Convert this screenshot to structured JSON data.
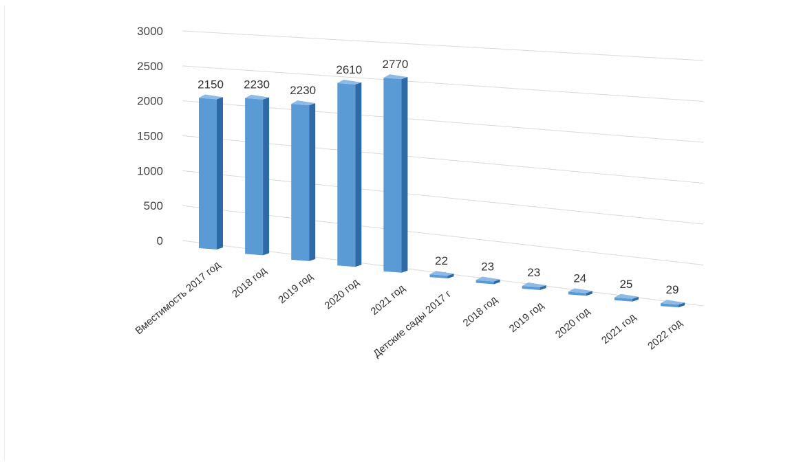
{
  "chart_data": {
    "type": "bar",
    "three_d": true,
    "categories": [
      "Вместимость 2017 год",
      "2018 год",
      "2019 год",
      "2020 год",
      "2021 год",
      "Детские сады 2017 г",
      "2018 год",
      "2019 год",
      "2020 год",
      "2021 год",
      "2022 год"
    ],
    "values": [
      2150,
      2230,
      2230,
      2610,
      2770,
      22,
      23,
      23,
      24,
      25,
      29
    ],
    "data_labels": [
      "2150",
      "2230",
      "2230",
      "2610",
      "2770",
      "22",
      "23",
      "23",
      "24",
      "25",
      "29"
    ],
    "y_ticks": [
      "0",
      "500",
      "1000",
      "1500",
      "2000",
      "2500",
      "3000"
    ],
    "ylim": [
      0,
      3000
    ],
    "grid": true,
    "legend": "none",
    "title": "",
    "xlabel": "",
    "ylabel": "",
    "colors": {
      "bar_front": "#5b9bd5",
      "bar_side": "#2e6aa8",
      "bar_top": "#8dbbe6",
      "grid": "#d9d9d9",
      "text": "#404040"
    }
  }
}
